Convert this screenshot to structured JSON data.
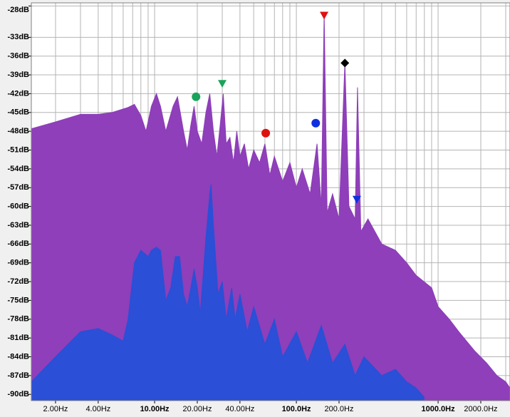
{
  "chart_data": {
    "type": "area",
    "xscale": "log",
    "grid": true,
    "xlim": [
      1.35,
      3215
    ],
    "ylim": [
      -91,
      -27.5
    ],
    "xticks": [
      {
        "value": 2,
        "label": "2.00Hz"
      },
      {
        "value": 4,
        "label": "4.00Hz"
      },
      {
        "value": 10,
        "label": "10.00Hz"
      },
      {
        "value": 20,
        "label": "20.00Hz"
      },
      {
        "value": 40,
        "label": "40.00Hz"
      },
      {
        "value": 100,
        "label": "100.0Hz"
      },
      {
        "value": 200,
        "label": "200.0Hz"
      },
      {
        "value": 1000,
        "label": "1000.0Hz"
      },
      {
        "value": 2000,
        "label": "2000.0Hz"
      }
    ],
    "x_gridlines": [
      2,
      3,
      4,
      5,
      6,
      7,
      8,
      9,
      10,
      20,
      30,
      40,
      50,
      60,
      70,
      80,
      90,
      100,
      200,
      300,
      400,
      500,
      600,
      700,
      800,
      900,
      1000,
      2000,
      3000
    ],
    "yticks": [
      {
        "value": -28,
        "label": "-28dB"
      },
      {
        "value": -33,
        "label": "-33dB"
      },
      {
        "value": -36,
        "label": "-36dB"
      },
      {
        "value": -39,
        "label": "-39dB"
      },
      {
        "value": -42,
        "label": "-42dB"
      },
      {
        "value": -45,
        "label": "-45dB"
      },
      {
        "value": -48,
        "label": "-48dB"
      },
      {
        "value": -51,
        "label": "-51dB"
      },
      {
        "value": -54,
        "label": "-54dB"
      },
      {
        "value": -57,
        "label": "-57dB"
      },
      {
        "value": -60,
        "label": "-60dB"
      },
      {
        "value": -63,
        "label": "-63dB"
      },
      {
        "value": -66,
        "label": "-66dB"
      },
      {
        "value": -69,
        "label": "-69dB"
      },
      {
        "value": -72,
        "label": "-72dB"
      },
      {
        "value": -75,
        "label": "-75dB"
      },
      {
        "value": -78,
        "label": "-78dB"
      },
      {
        "value": -81,
        "label": "-81dB"
      },
      {
        "value": -84,
        "label": "-84dB"
      },
      {
        "value": -87,
        "label": "-87dB"
      },
      {
        "value": -90,
        "label": "-90dB"
      }
    ],
    "series": [
      {
        "color": "#8e3fb9",
        "x": [
          1.35,
          2,
          3,
          4,
          5,
          6.5,
          7.2,
          8,
          8.7,
          9.5,
          10.3,
          11,
          12,
          13.5,
          14.5,
          16,
          17,
          18,
          19,
          20,
          21.5,
          23,
          24.5,
          26,
          27.5,
          29,
          30.5,
          32,
          34,
          36,
          38,
          40,
          43,
          46,
          50,
          55,
          60,
          65,
          70,
          80,
          90,
          100,
          110,
          125,
          140,
          150,
          157,
          165,
          180,
          200,
          220,
          235,
          260,
          270,
          285,
          320,
          400,
          500,
          600,
          700,
          900,
          1000,
          1200,
          1400,
          1800,
          2200,
          2600,
          3000,
          3215
        ],
        "y": [
          -47.6,
          -46.5,
          -45.3,
          -45.3,
          -45,
          -44.2,
          -43.7,
          -45.5,
          -48,
          -44,
          -42,
          -44,
          -48,
          -44,
          -42.5,
          -48,
          -51,
          -47,
          -44,
          -48,
          -50,
          -45,
          -42,
          -48,
          -52,
          -47,
          -42,
          -50,
          -49,
          -53,
          -48,
          -52,
          -50,
          -54,
          -51,
          -53,
          -50,
          -55,
          -52,
          -56,
          -53,
          -57,
          -54,
          -58,
          -50,
          -60,
          -29,
          -61,
          -58,
          -62,
          -37,
          -60,
          -62,
          -41,
          -64,
          -62,
          -66,
          -67,
          -69,
          -71,
          -73,
          -76,
          -78,
          -80,
          -83,
          -85,
          -87,
          -88,
          -89
        ]
      },
      {
        "color": "#2b4fd6",
        "x": [
          1.35,
          2,
          3,
          4,
          5,
          6,
          6.5,
          7.2,
          8,
          9,
          9.5,
          10.3,
          11,
          12,
          13,
          14,
          15,
          16,
          17,
          18,
          19,
          20,
          21,
          22,
          23,
          24.5,
          25,
          26,
          28,
          30,
          32,
          35,
          37,
          40,
          45,
          50,
          60,
          70,
          80,
          100,
          120,
          150,
          180,
          220,
          260,
          300,
          400,
          500,
          600,
          700,
          800
        ],
        "y": [
          -88,
          -84,
          -80,
          -79.5,
          -80.5,
          -81.5,
          -78,
          -69,
          -67,
          -68,
          -67,
          -66.5,
          -67,
          -75,
          -73,
          -68,
          -68,
          -74,
          -76,
          -73,
          -70,
          -73,
          -77,
          -71,
          -65,
          -58,
          -56.5,
          -63,
          -74,
          -72,
          -78,
          -73,
          -78,
          -74,
          -80,
          -76,
          -82,
          -78,
          -84,
          -80,
          -85,
          -79,
          -85,
          -82,
          -87,
          -84,
          -87,
          -86,
          -88,
          -89,
          -90.5
        ]
      }
    ],
    "markers": [
      {
        "shape": "circle",
        "color": "#1aa35a",
        "x": 19.6,
        "y": -42.5
      },
      {
        "shape": "triangle-down",
        "color": "#1aa35a",
        "x": 30,
        "y": -40.5
      },
      {
        "shape": "circle",
        "color": "#e01010",
        "x": 60.8,
        "y": -48.3
      },
      {
        "shape": "circle",
        "color": "#1030e0",
        "x": 137,
        "y": -46.7
      },
      {
        "shape": "triangle-down",
        "color": "#e01010",
        "x": 157,
        "y": -29.6
      },
      {
        "shape": "diamond",
        "color": "#000000",
        "x": 220,
        "y": -37.1
      },
      {
        "shape": "triangle-down",
        "color": "#1030e0",
        "x": 267,
        "y": -59
      }
    ]
  }
}
